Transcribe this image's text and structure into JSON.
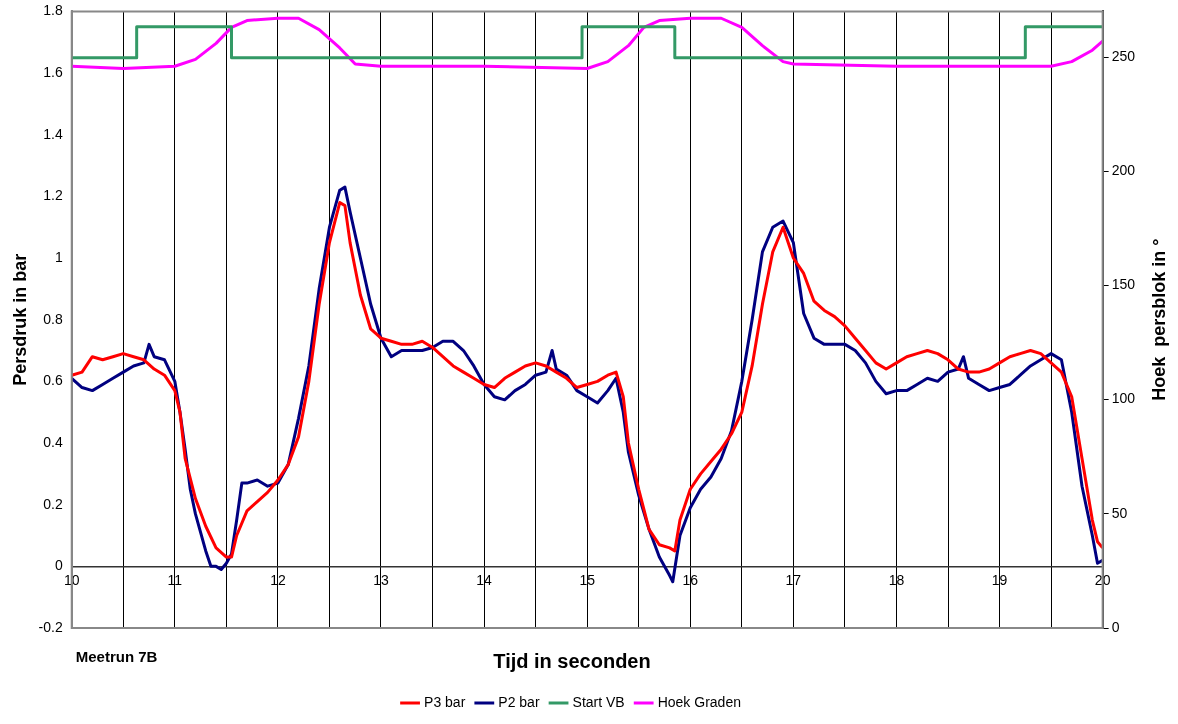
{
  "chart_data": {
    "type": "line",
    "xlabel": "Tijd in seconden",
    "ylabel": "Persdruk in bar",
    "y2label": "Hoek  persblok in °",
    "annotations": [
      "Meetrun 7B"
    ],
    "xlim": [
      10,
      20
    ],
    "xticks": [
      10,
      {
        "value": 10.5,
        "label": null
      },
      11,
      {
        "value": 11.5,
        "label": null
      },
      12,
      {
        "value": 12.5,
        "label": null
      },
      13,
      {
        "value": 13.5,
        "label": null
      },
      14,
      {
        "value": 14.5,
        "label": null
      },
      15,
      {
        "value": 15.5,
        "label": null
      },
      16,
      {
        "value": 16.5,
        "label": null
      },
      17,
      {
        "value": 17.5,
        "label": null
      },
      18,
      {
        "value": 18.5,
        "label": null
      },
      19,
      {
        "value": 19.5,
        "label": null
      },
      20
    ],
    "ylim": [
      -0.2,
      1.8
    ],
    "yticks": [
      -0.2,
      0,
      0.2,
      0.4,
      0.6,
      0.8,
      1,
      1.2,
      1.4,
      1.6,
      1.8
    ],
    "y2lim": [
      0,
      270
    ],
    "y2ticks": [
      0,
      50,
      100,
      150,
      200,
      250
    ],
    "grid": "x",
    "legend": "bottom",
    "series": [
      {
        "name": "P3 bar",
        "color": "#ff0000",
        "x": [
          10,
          10.1,
          10.2,
          10.3,
          10.4,
          10.5,
          10.6,
          10.7,
          10.8,
          10.9,
          11,
          11.05,
          11.1,
          11.2,
          11.3,
          11.4,
          11.5,
          11.55,
          11.6,
          11.7,
          11.8,
          11.9,
          12,
          12.1,
          12.2,
          12.3,
          12.4,
          12.5,
          12.6,
          12.65,
          12.7,
          12.8,
          12.9,
          13,
          13.1,
          13.2,
          13.3,
          13.4,
          13.5,
          13.6,
          13.7,
          13.8,
          13.9,
          14,
          14.1,
          14.2,
          14.3,
          14.4,
          14.5,
          14.6,
          14.7,
          14.8,
          14.9,
          15,
          15.1,
          15.2,
          15.28,
          15.35,
          15.4,
          15.5,
          15.6,
          15.7,
          15.8,
          15.85,
          15.9,
          16,
          16.1,
          16.2,
          16.3,
          16.4,
          16.5,
          16.6,
          16.7,
          16.8,
          16.9,
          17,
          17.1,
          17.2,
          17.3,
          17.4,
          17.5,
          17.6,
          17.7,
          17.8,
          17.9,
          18,
          18.1,
          18.2,
          18.3,
          18.4,
          18.5,
          18.6,
          18.7,
          18.8,
          18.9,
          19,
          19.1,
          19.2,
          19.3,
          19.4,
          19.5,
          19.6,
          19.7,
          19.8,
          19.9,
          19.95,
          20
        ],
        "values": [
          0.62,
          0.63,
          0.68,
          0.67,
          0.68,
          0.69,
          0.68,
          0.67,
          0.64,
          0.62,
          0.57,
          0.5,
          0.35,
          0.22,
          0.13,
          0.06,
          0.03,
          0.03,
          0.1,
          0.18,
          0.21,
          0.24,
          0.28,
          0.33,
          0.42,
          0.6,
          0.85,
          1.05,
          1.18,
          1.17,
          1.05,
          0.88,
          0.77,
          0.74,
          0.73,
          0.72,
          0.72,
          0.73,
          0.71,
          0.68,
          0.65,
          0.63,
          0.61,
          0.59,
          0.58,
          0.61,
          0.63,
          0.65,
          0.66,
          0.65,
          0.63,
          0.61,
          0.58,
          0.59,
          0.6,
          0.62,
          0.63,
          0.55,
          0.4,
          0.25,
          0.12,
          0.07,
          0.06,
          0.05,
          0.15,
          0.25,
          0.3,
          0.34,
          0.38,
          0.43,
          0.5,
          0.65,
          0.85,
          1.02,
          1.1,
          1,
          0.95,
          0.86,
          0.83,
          0.81,
          0.78,
          0.74,
          0.7,
          0.66,
          0.64,
          0.66,
          0.68,
          0.69,
          0.7,
          0.69,
          0.67,
          0.64,
          0.63,
          0.63,
          0.64,
          0.66,
          0.68,
          0.69,
          0.7,
          0.69,
          0.66,
          0.63,
          0.55,
          0.35,
          0.15,
          0.08,
          0.06
        ]
      },
      {
        "name": "P2 bar",
        "color": "#000080",
        "x": [
          10,
          10.1,
          10.2,
          10.3,
          10.4,
          10.5,
          10.6,
          10.7,
          10.75,
          10.8,
          10.9,
          11,
          11.05,
          11.1,
          11.15,
          11.2,
          11.3,
          11.35,
          11.4,
          11.45,
          11.5,
          11.55,
          11.6,
          11.65,
          11.7,
          11.8,
          11.9,
          12,
          12.1,
          12.2,
          12.3,
          12.4,
          12.5,
          12.6,
          12.65,
          12.7,
          12.8,
          12.9,
          13,
          13.1,
          13.2,
          13.3,
          13.4,
          13.5,
          13.6,
          13.7,
          13.8,
          13.9,
          14,
          14.1,
          14.2,
          14.3,
          14.4,
          14.5,
          14.6,
          14.66,
          14.7,
          14.8,
          14.9,
          15,
          15.1,
          15.2,
          15.28,
          15.35,
          15.4,
          15.5,
          15.6,
          15.7,
          15.8,
          15.83,
          15.9,
          16,
          16.1,
          16.2,
          16.3,
          16.4,
          16.5,
          16.6,
          16.7,
          16.8,
          16.9,
          17,
          17.1,
          17.2,
          17.3,
          17.4,
          17.5,
          17.6,
          17.7,
          17.8,
          17.9,
          18,
          18.1,
          18.2,
          18.3,
          18.4,
          18.5,
          18.6,
          18.65,
          18.7,
          18.8,
          18.9,
          19,
          19.1,
          19.2,
          19.3,
          19.4,
          19.5,
          19.6,
          19.7,
          19.8,
          19.9,
          19.95,
          20
        ],
        "values": [
          0.61,
          0.58,
          0.57,
          0.59,
          0.61,
          0.63,
          0.65,
          0.66,
          0.72,
          0.68,
          0.67,
          0.6,
          0.5,
          0.38,
          0.25,
          0.17,
          0.05,
          0,
          0,
          -0.01,
          0.01,
          0.04,
          0.15,
          0.27,
          0.27,
          0.28,
          0.26,
          0.27,
          0.33,
          0.48,
          0.65,
          0.9,
          1.1,
          1.22,
          1.23,
          1.15,
          1,
          0.85,
          0.74,
          0.68,
          0.7,
          0.7,
          0.7,
          0.71,
          0.73,
          0.73,
          0.7,
          0.65,
          0.59,
          0.55,
          0.54,
          0.57,
          0.59,
          0.62,
          0.63,
          0.7,
          0.64,
          0.62,
          0.57,
          0.55,
          0.53,
          0.57,
          0.61,
          0.5,
          0.37,
          0.23,
          0.12,
          0.03,
          -0.03,
          -0.05,
          0.1,
          0.19,
          0.25,
          0.29,
          0.35,
          0.44,
          0.6,
          0.8,
          1.02,
          1.1,
          1.12,
          1.05,
          0.82,
          0.74,
          0.72,
          0.72,
          0.72,
          0.7,
          0.66,
          0.6,
          0.56,
          0.57,
          0.57,
          0.59,
          0.61,
          0.6,
          0.63,
          0.64,
          0.68,
          0.61,
          0.59,
          0.57,
          0.58,
          0.59,
          0.62,
          0.65,
          0.67,
          0.69,
          0.67,
          0.5,
          0.26,
          0.1,
          0.01,
          0.02
        ]
      },
      {
        "name": "Start VB",
        "type": "step",
        "color": "#339966",
        "x": [
          10,
          10.63,
          11.55,
          14.95,
          15.85,
          19.25,
          20
        ],
        "values": [
          1.65,
          1.75,
          1.65,
          1.75,
          1.65,
          1.75,
          1.75
        ]
      },
      {
        "name": "Hoek Graden",
        "axis": "y2",
        "color": "#ff00ff",
        "x": [
          10,
          10.5,
          11,
          11.2,
          11.4,
          11.55,
          11.7,
          12,
          12.2,
          12.4,
          12.6,
          12.75,
          13,
          14,
          15,
          15.2,
          15.4,
          15.55,
          15.7,
          16,
          16.3,
          16.5,
          16.7,
          16.9,
          17,
          18,
          19,
          19.5,
          19.7,
          19.9,
          20
        ],
        "values": [
          246,
          245,
          246,
          249,
          256,
          263,
          266,
          267,
          267,
          262,
          254,
          247,
          246,
          246,
          245,
          248,
          255,
          263,
          266,
          267,
          267,
          263,
          255,
          248,
          247,
          246,
          246,
          246,
          248,
          253,
          257
        ]
      }
    ]
  }
}
